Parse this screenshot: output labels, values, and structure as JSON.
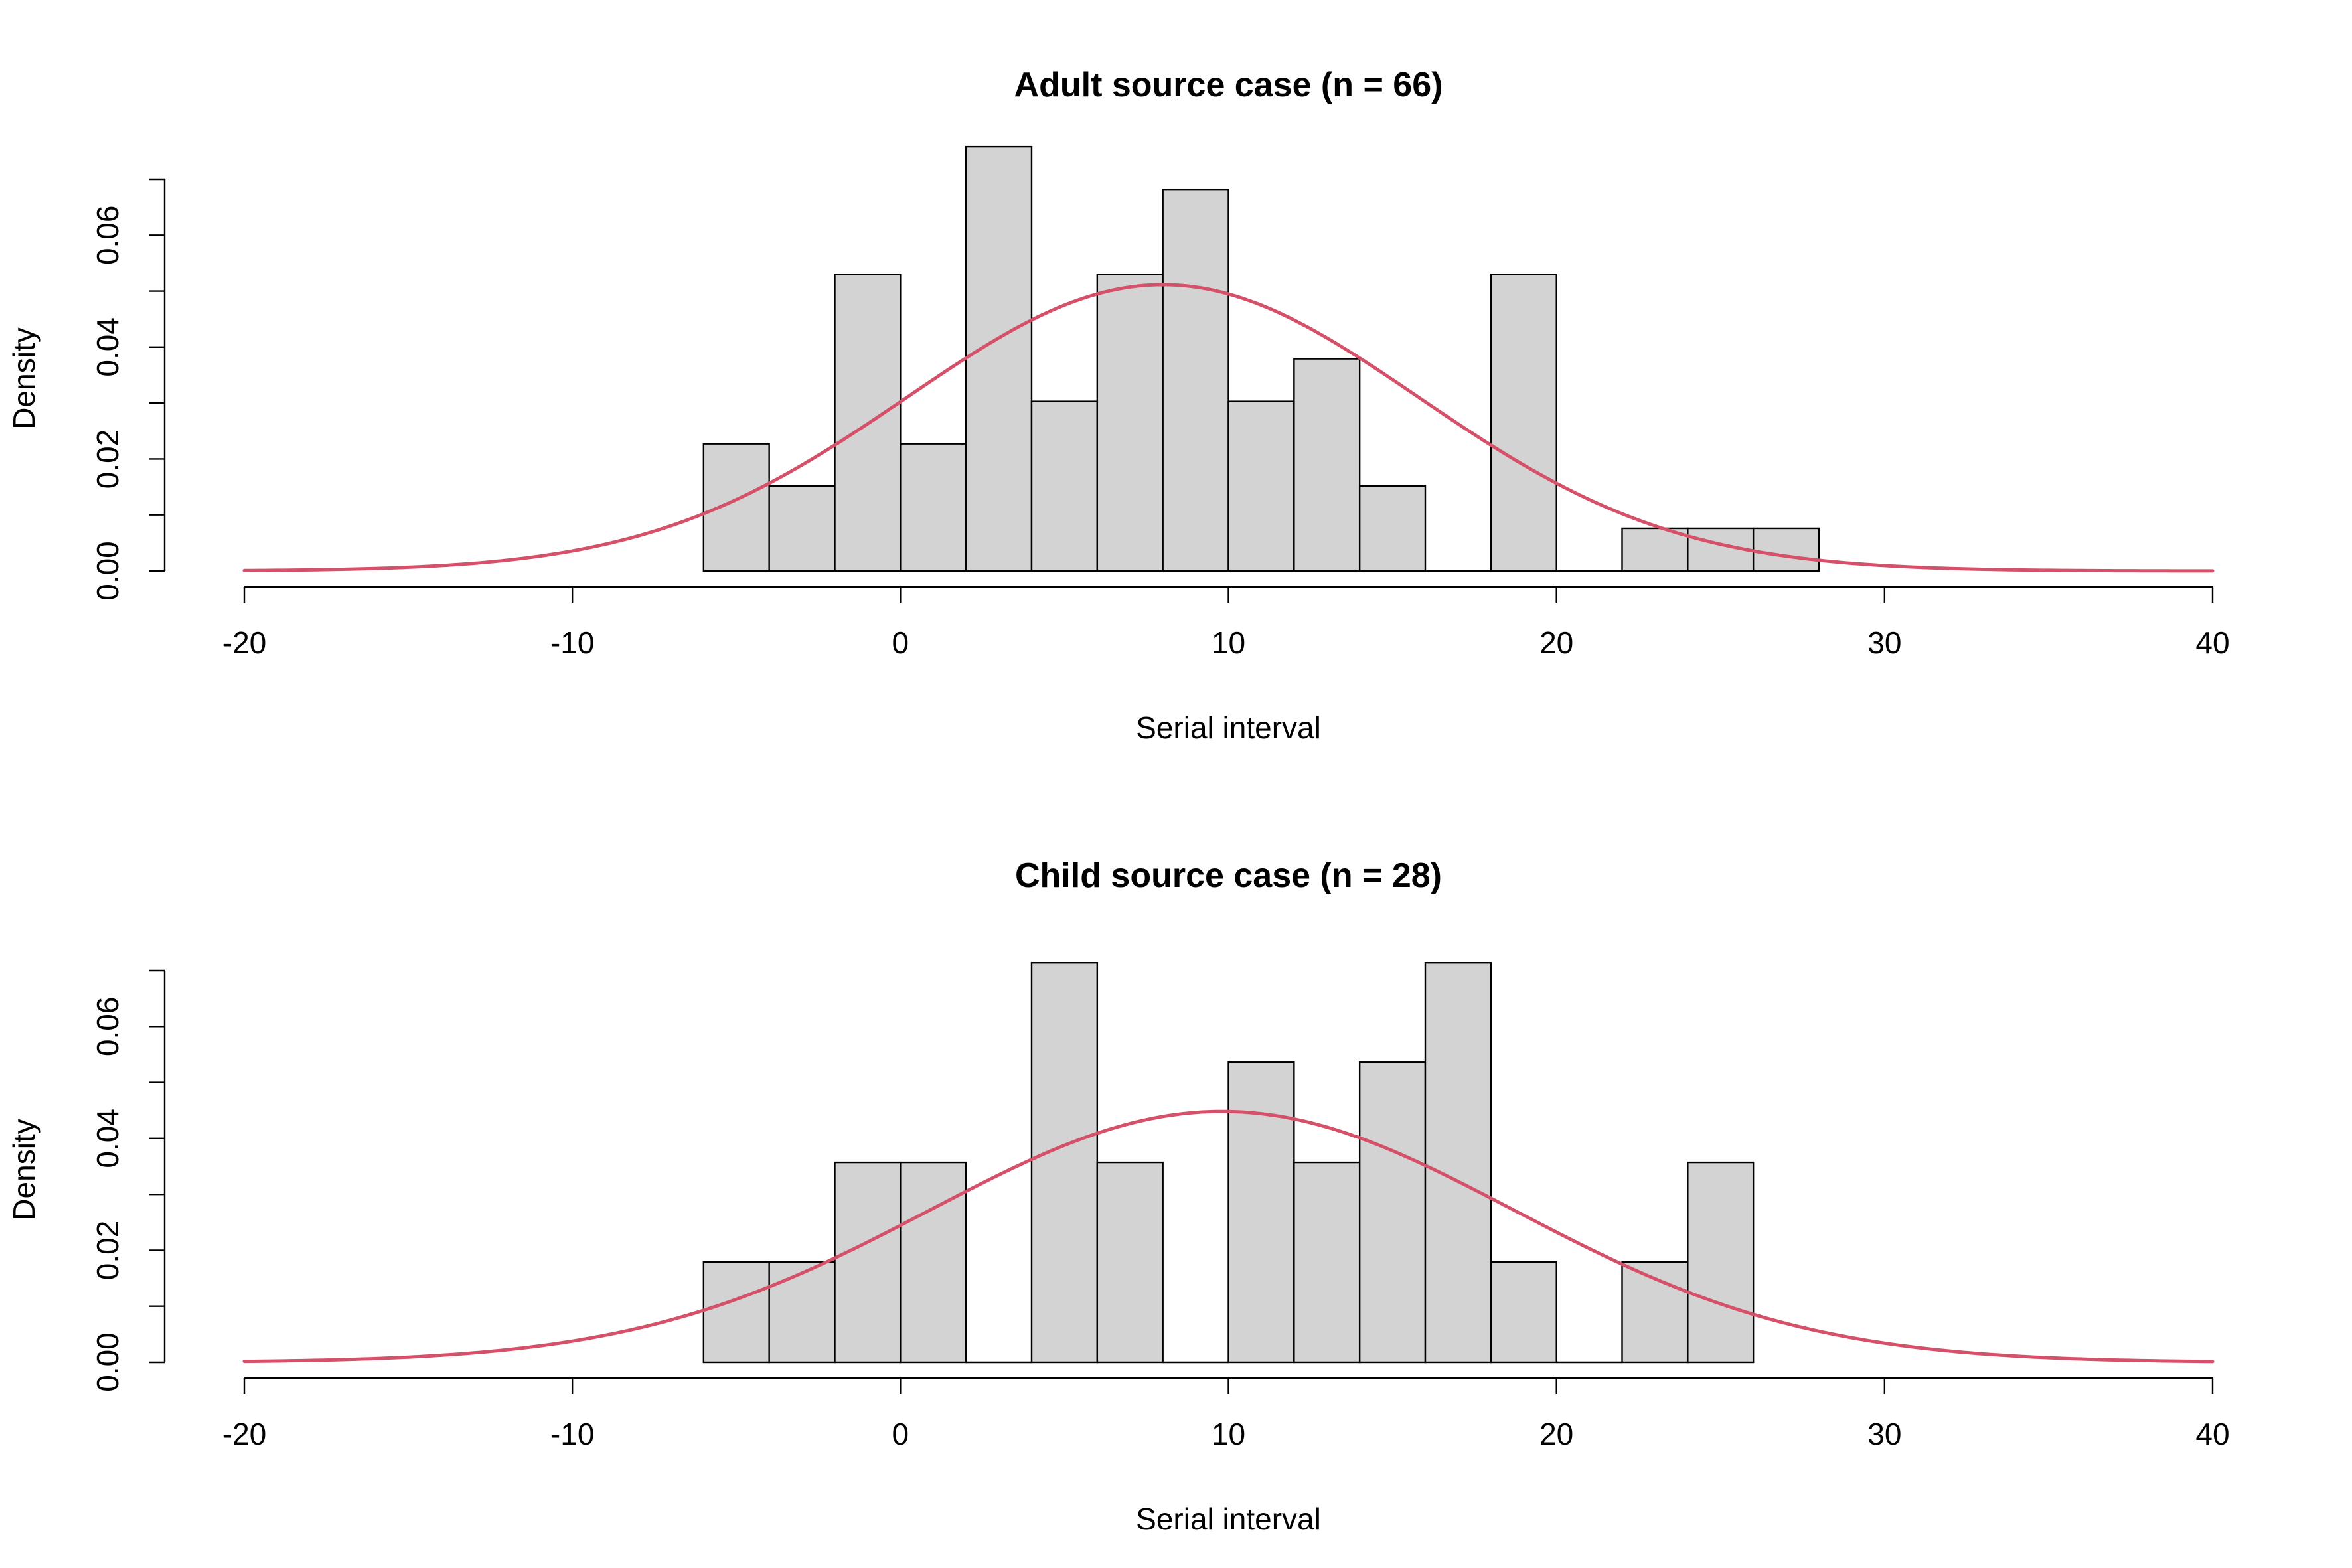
{
  "colors": {
    "bar_fill": "#d3d3d3",
    "bar_stroke": "#000000",
    "curve": "#d5516a"
  },
  "chart_data": [
    {
      "type": "bar",
      "title": "Adult source case (n = 66)",
      "xlabel": "Serial interval",
      "ylabel": "Density",
      "xlim": [
        -20,
        40
      ],
      "ylim": [
        0,
        0.07
      ],
      "x_ticks": [
        "-20",
        "-10",
        "0",
        "10",
        "20",
        "30",
        "40"
      ],
      "y_ticks": [
        "0.00",
        "0.02",
        "0.04",
        "0.06"
      ],
      "bin_width": 2,
      "bin_edges": [
        -6,
        -4,
        -2,
        0,
        2,
        4,
        6,
        8,
        10,
        12,
        14,
        16,
        18,
        20,
        22,
        24,
        26,
        28
      ],
      "values": [
        0.0227,
        0.0152,
        0.053,
        0.0227,
        0.0758,
        0.0303,
        0.053,
        0.0682,
        0.0303,
        0.0379,
        0.0152,
        0.0,
        0.053,
        0.0,
        0.0076,
        0.0076,
        0.0076
      ],
      "curve": {
        "type": "normal_density",
        "mean": 8,
        "sd": 7.8
      }
    },
    {
      "type": "bar",
      "title": "Child source case (n = 28)",
      "xlabel": "Serial interval",
      "ylabel": "Density",
      "xlim": [
        -20,
        40
      ],
      "ylim": [
        0,
        0.07
      ],
      "x_ticks": [
        "-20",
        "-10",
        "0",
        "10",
        "20",
        "30",
        "40"
      ],
      "y_ticks": [
        "0.00",
        "0.02",
        "0.04",
        "0.06"
      ],
      "bin_width": 2,
      "bin_edges": [
        -6,
        -4,
        -2,
        0,
        2,
        4,
        6,
        8,
        10,
        12,
        14,
        16,
        18,
        20,
        22,
        24,
        26
      ],
      "values": [
        0.0179,
        0.0179,
        0.0357,
        0.0357,
        0.0,
        0.0714,
        0.0357,
        0.0,
        0.0536,
        0.0357,
        0.0536,
        0.0714,
        0.0179,
        0.0,
        0.0179,
        0.0357
      ],
      "curve": {
        "type": "normal_density",
        "mean": 9.8,
        "sd": 8.9
      }
    }
  ]
}
